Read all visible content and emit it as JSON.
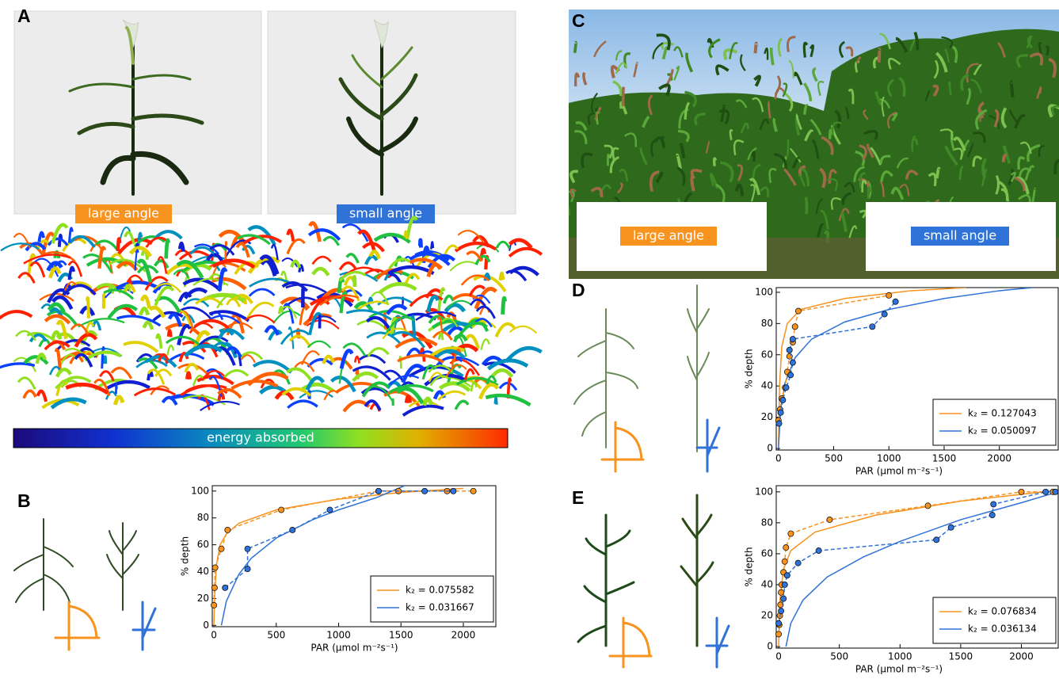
{
  "figure": {
    "panels": [
      "A",
      "B",
      "C",
      "D",
      "E"
    ],
    "panel_a": {
      "labels": [
        "large angle",
        "small angle"
      ],
      "colorbar_label": "energy absorbed"
    },
    "panel_c": {
      "labels": [
        "large angle",
        "small angle"
      ]
    }
  },
  "chart_data": [
    {
      "type": "line",
      "xlabel": "PAR (μmol m⁻²s⁻¹)",
      "ylabel": "% depth",
      "xlim": [
        -13,
        2267
      ],
      "ylim": [
        -1,
        104
      ],
      "xticks": [
        0,
        500,
        1000,
        1500,
        2000
      ],
      "yticks": [
        0,
        20,
        40,
        60,
        80,
        100
      ],
      "legend": "lower right",
      "series": [
        {
          "name": "k₂ = 0.075582",
          "color": "#f7931e",
          "line_style": "solid",
          "x": [
            0,
            5,
            20,
            50,
            100,
            200,
            500,
            1000,
            1500,
            2000
          ],
          "values": [
            0,
            20,
            45,
            60,
            68,
            76,
            86,
            94,
            99,
            102
          ]
        },
        {
          "name": "k₂ = 0.031667",
          "color": "#2f72d8",
          "line_style": "solid",
          "x": [
            60,
            100,
            200,
            300,
            500,
            800,
            1000,
            1300,
            1530
          ],
          "values": [
            0,
            18,
            38,
            50,
            65,
            79,
            86,
            95,
            104
          ]
        },
        {
          "color": "#f7931e",
          "line_style": "dashed",
          "marker": "circle",
          "x": [
            0,
            5,
            10,
            60,
            110,
            540,
            1320,
            1480,
            1870,
            2080
          ],
          "values": [
            15,
            28,
            43,
            57,
            71,
            86,
            100,
            100,
            100,
            100
          ]
        },
        {
          "color": "#2f72d8",
          "line_style": "dashed",
          "marker": "circle",
          "x": [
            90,
            270,
            270,
            630,
            930,
            1320,
            1690,
            1920
          ],
          "values": [
            28,
            42,
            57,
            71,
            86,
            100,
            100,
            100
          ]
        }
      ]
    },
    {
      "type": "line",
      "xlabel": "PAR (μmol m⁻²s⁻¹)",
      "ylabel": "% depth",
      "xlim": [
        -20,
        2540
      ],
      "ylim": [
        -1,
        103
      ],
      "xticks": [
        0,
        500,
        1000,
        1500,
        2000
      ],
      "yticks": [
        0,
        20,
        40,
        60,
        80,
        100
      ],
      "legend": "lower right",
      "series": [
        {
          "name": "k₂ = 0.127043",
          "color": "#f7931e",
          "line_style": "solid",
          "x": [
            0,
            10,
            30,
            80,
            200,
            600,
            1200,
            1700
          ],
          "values": [
            0,
            40,
            65,
            80,
            89,
            96,
            101,
            103
          ]
        },
        {
          "name": "k₂ = 0.050097",
          "color": "#2f72d8",
          "line_style": "solid",
          "x": [
            0,
            20,
            60,
            150,
            300,
            600,
            1000,
            1500,
            2000,
            2300
          ],
          "values": [
            0,
            25,
            42,
            58,
            70,
            81,
            89,
            96,
            101,
            103
          ]
        },
        {
          "color": "#f7931e",
          "line_style": "dashed",
          "marker": "circle",
          "x": [
            0,
            15,
            30,
            60,
            80,
            100,
            130,
            150,
            180,
            1000
          ],
          "values": [
            18,
            25,
            32,
            39,
            49,
            59,
            68,
            78,
            88,
            98
          ]
        },
        {
          "color": "#2f72d8",
          "line_style": "dashed",
          "marker": "circle",
          "x": [
            5,
            20,
            40,
            70,
            110,
            130,
            100,
            130,
            850,
            960,
            1060
          ],
          "values": [
            16,
            23,
            31,
            39,
            47,
            55,
            63,
            70,
            78,
            86,
            94
          ]
        }
      ]
    },
    {
      "type": "line",
      "xlabel": "PAR (μmol m⁻²s⁻¹)",
      "ylabel": "% depth",
      "xlim": [
        -20,
        2310
      ],
      "ylim": [
        -1,
        104
      ],
      "xticks": [
        0,
        500,
        1000,
        1500,
        2000
      ],
      "yticks": [
        0,
        20,
        40,
        60,
        80,
        100
      ],
      "legend": "lower right",
      "series": [
        {
          "name": "k₂ = 0.076834",
          "color": "#f7931e",
          "line_style": "solid",
          "x": [
            0,
            10,
            40,
            100,
            300,
            800,
            1500,
            2290
          ],
          "values": [
            0,
            30,
            50,
            62,
            74,
            85,
            94,
            101
          ]
        },
        {
          "name": "k₂ = 0.036134",
          "color": "#2f72d8",
          "line_style": "solid",
          "x": [
            60,
            100,
            200,
            400,
            700,
            1000,
            1500,
            2000,
            2300
          ],
          "values": [
            0,
            15,
            30,
            45,
            58,
            68,
            82,
            93,
            100
          ]
        },
        {
          "color": "#f7931e",
          "line_style": "dashed",
          "marker": "circle",
          "x": [
            0,
            5,
            10,
            15,
            20,
            25,
            40,
            50,
            60,
            100,
            420,
            1230,
            2000,
            2260
          ],
          "values": [
            8,
            14,
            20,
            27,
            35,
            40,
            48,
            55,
            64,
            73,
            82,
            91,
            100,
            100
          ]
        },
        {
          "color": "#2f72d8",
          "line_style": "dashed",
          "marker": "circle",
          "x": [
            0,
            20,
            40,
            50,
            70,
            160,
            330,
            1300,
            1420,
            1760,
            1770,
            2200,
            2280
          ],
          "values": [
            15,
            23,
            31,
            40,
            46,
            54,
            62,
            69,
            77,
            85,
            92,
            100,
            100
          ]
        }
      ]
    }
  ]
}
